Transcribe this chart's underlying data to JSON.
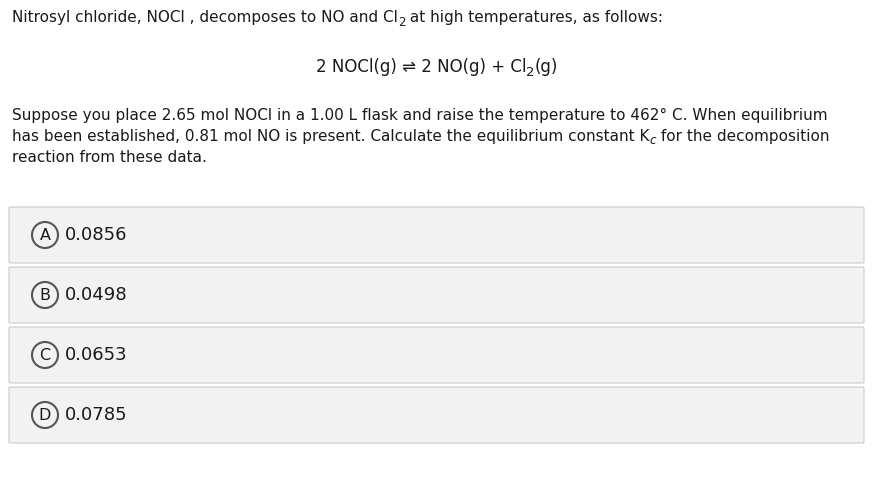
{
  "bg_color": "#ffffff",
  "option_bg_color": "#f2f2f2",
  "option_border_color": "#cccccc",
  "text_color": "#1a1a1a",
  "circle_color": "#555555",
  "options": [
    {
      "label": "A",
      "value": "0.0856"
    },
    {
      "label": "B",
      "value": "0.0498"
    },
    {
      "label": "C",
      "value": "0.0653"
    },
    {
      "label": "D",
      "value": "0.0785"
    }
  ],
  "font_size_body": 11.0,
  "font_size_eq": 12.0,
  "font_size_opt_label": 11.5,
  "font_size_opt_value": 13.0
}
